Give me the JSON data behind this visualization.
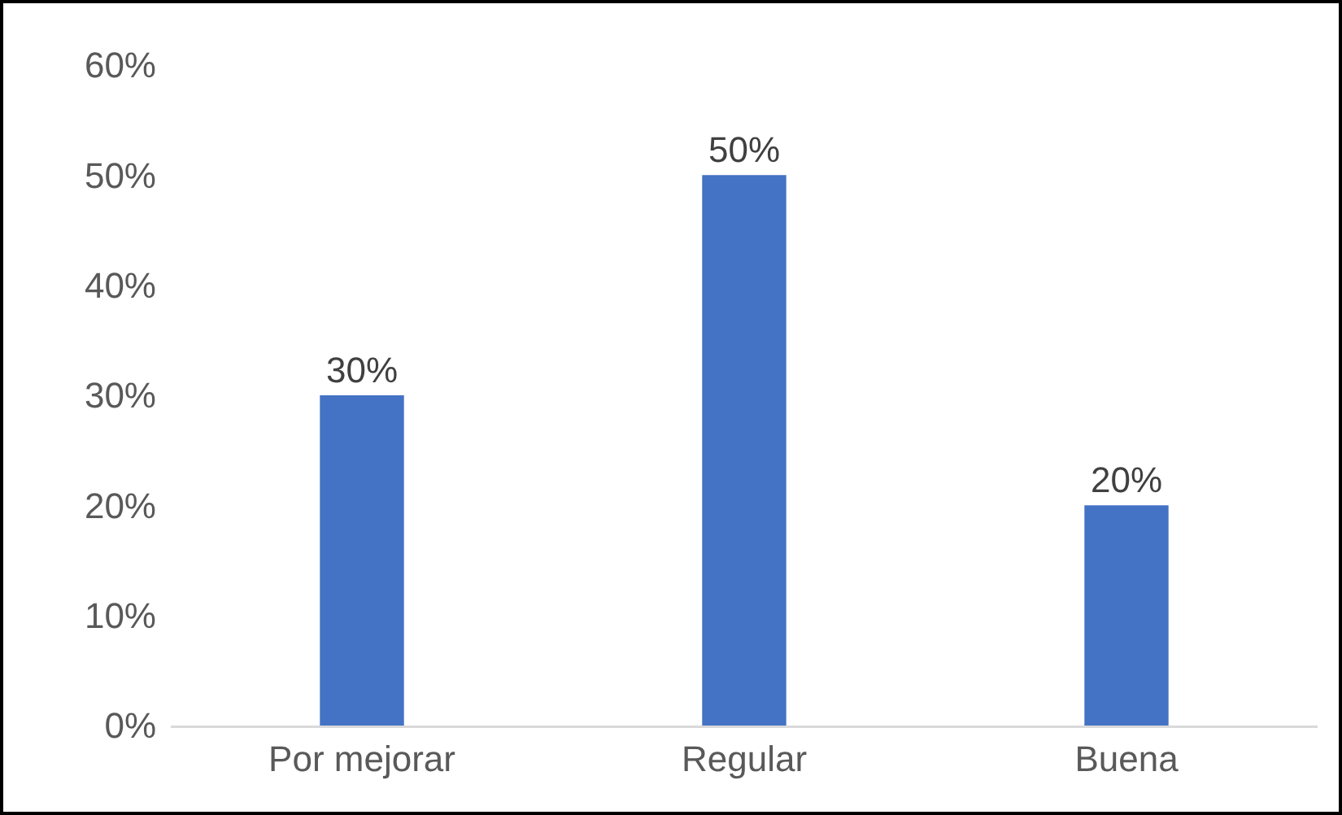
{
  "chart_data": {
    "type": "bar",
    "categories": [
      "Por mejorar",
      "Regular",
      "Buena"
    ],
    "values": [
      30,
      50,
      20
    ],
    "color": "#4472c4",
    "value_labels": [
      "30%",
      "50%",
      "20%"
    ],
    "ylim": [
      0,
      60
    ],
    "yticks": [
      {
        "value": 0,
        "label": "0%"
      },
      {
        "value": 10,
        "label": "10%"
      },
      {
        "value": 20,
        "label": "20%"
      },
      {
        "value": 30,
        "label": "30%"
      },
      {
        "value": 40,
        "label": "40%"
      },
      {
        "value": 50,
        "label": "50%"
      },
      {
        "value": 60,
        "label": "60%"
      }
    ]
  }
}
